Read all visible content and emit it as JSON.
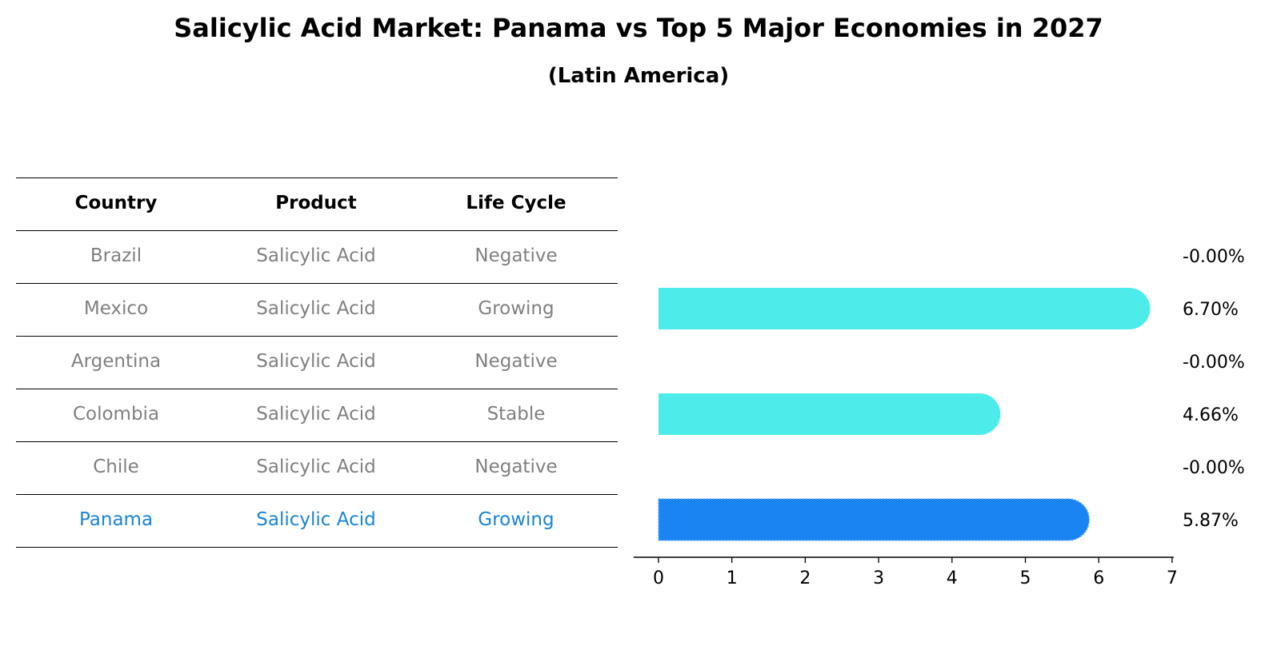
{
  "title": "Salicylic Acid Market: Panama vs Top 5 Major Economies in 2027",
  "subtitle": "(Latin America)",
  "table": {
    "headers": [
      "Country",
      "Product",
      "Life Cycle"
    ],
    "rows": [
      [
        "Brazil",
        "Salicylic Acid",
        "Negative"
      ],
      [
        "Mexico",
        "Salicylic Acid",
        "Growing"
      ],
      [
        "Argentina",
        "Salicylic Acid",
        "Negative"
      ],
      [
        "Colombia",
        "Salicylic Acid",
        "Stable"
      ],
      [
        "Chile",
        "Salicylic Acid",
        "Negative"
      ],
      [
        "Panama",
        "Salicylic Acid",
        "Growing"
      ]
    ],
    "highlight_row": 5
  },
  "colors": {
    "bar": "#4deceb",
    "highlight_bar": "#1a84f2",
    "muted_text": "#808080",
    "highlight_text": "#1a84d6"
  },
  "chart_data": {
    "type": "bar",
    "orientation": "horizontal",
    "categories": [
      "Brazil",
      "Mexico",
      "Argentina",
      "Colombia",
      "Chile",
      "Panama"
    ],
    "values": [
      -0.0,
      6.7,
      -0.0,
      4.66,
      -0.0,
      5.87
    ],
    "data_labels": [
      "-0.00%",
      "6.70%",
      "-0.00%",
      "4.66%",
      "-0.00%",
      "5.87%"
    ],
    "xlim": [
      0,
      7
    ],
    "xticks": [
      "0",
      "1",
      "2",
      "3",
      "4",
      "5",
      "6",
      "7"
    ],
    "highlight_index": 5,
    "grid": false
  }
}
